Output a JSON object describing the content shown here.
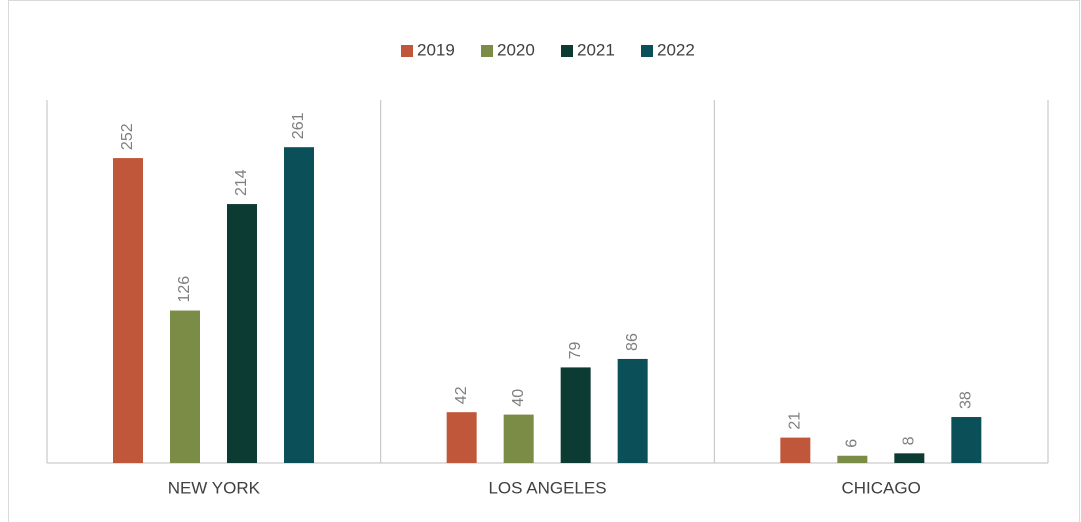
{
  "chart_data": {
    "type": "bar",
    "categories": [
      "NEW YORK",
      "LOS ANGELES",
      "CHICAGO"
    ],
    "series": [
      {
        "name": "2019",
        "color": "#c0573a",
        "values": [
          252,
          42,
          21
        ]
      },
      {
        "name": "2020",
        "color": "#7a8c45",
        "values": [
          126,
          40,
          6
        ]
      },
      {
        "name": "2021",
        "color": "#0c3b33",
        "values": [
          214,
          79,
          8
        ]
      },
      {
        "name": "2022",
        "color": "#0b5058",
        "values": [
          261,
          86,
          38
        ]
      }
    ],
    "ylim": [
      0,
      300
    ],
    "legend": "top"
  }
}
